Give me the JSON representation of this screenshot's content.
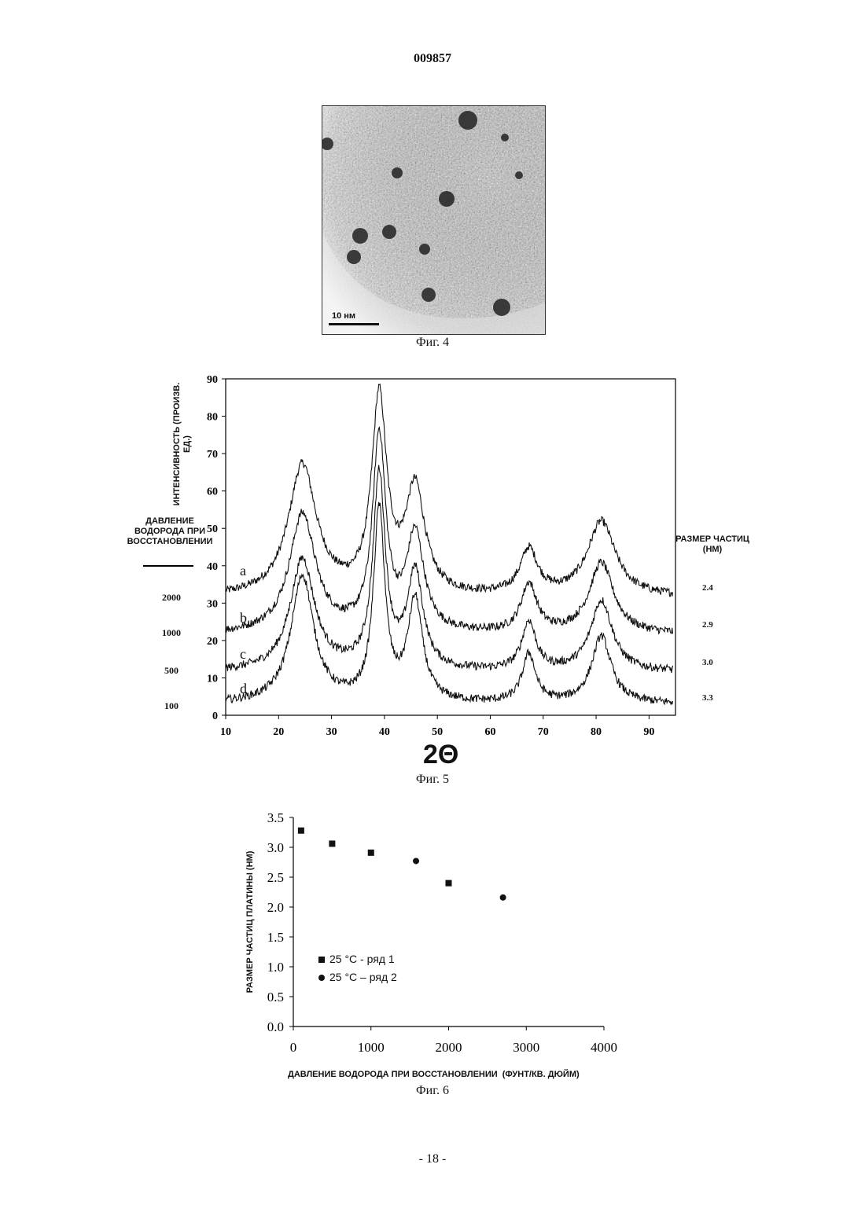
{
  "header": {
    "patent_number": "009857"
  },
  "figure4": {
    "caption": "Фиг. 4",
    "scale_label": "10 нм"
  },
  "figure5": {
    "caption": "Фиг. 5",
    "y_axis_label": "ИНТЕНСИВНОСТЬ (ПРОИЗВ. ЕД.)",
    "x_axis_label": "2Θ",
    "left_header": "ДАВЛЕНИЕ ВОДОРОДА ПРИ ВОССТАНОВЛЕНИИ",
    "right_header": "РАЗМЕР ЧАСТИЦ (НМ)",
    "curve_labels": [
      "a",
      "b",
      "c",
      "d"
    ],
    "pressures": [
      "2000",
      "1000",
      "500",
      "100"
    ],
    "sizes": [
      "2.4",
      "2.9",
      "3.0",
      "3.3"
    ]
  },
  "figure6": {
    "caption": "Фиг. 6",
    "x_axis_label": "ДАВЛЕНИЕ ВОДОРОДА ПРИ ВОССТАНОВЛЕНИИ  (ФУНТ/КВ. ДЮЙМ)",
    "y_axis_label": "РАЗМЕР ЧАСТИЦ ПЛАТИНЫ (НМ)",
    "legend": [
      "25 °C - ряд 1",
      "25 °C – ряд 2"
    ]
  },
  "footer": {
    "page_number": "- 18 -"
  },
  "chart_data": [
    {
      "type": "line",
      "title": "",
      "xlabel": "2Θ",
      "ylabel": "ИНТЕНСИВНОСТЬ (ПРОИЗВ. ЕД.)",
      "xlim": [
        10,
        95
      ],
      "ylim": [
        0,
        90
      ],
      "x_ticks": [
        "10",
        "20",
        "30",
        "40",
        "50",
        "60",
        "70",
        "80",
        "90"
      ],
      "y_ticks": [
        "0",
        "10",
        "20",
        "30",
        "40",
        "50",
        "60",
        "70",
        "80",
        "90"
      ],
      "series": [
        {
          "name": "a",
          "baseline": 31.5,
          "peaks": [
            [
              24.5,
              35,
              3.2
            ],
            [
              39.0,
              52,
              1.7
            ],
            [
              45.8,
              28,
              2.2
            ],
            [
              67.3,
              12,
              2.0
            ],
            [
              81.0,
              20,
              3.2
            ]
          ]
        },
        {
          "name": "b",
          "baseline": 21.5,
          "peaks": [
            [
              24.5,
              32,
              3.0
            ],
            [
              39.0,
              52,
              1.5
            ],
            [
              45.8,
              26,
              2.0
            ],
            [
              67.3,
              13,
              1.8
            ],
            [
              81.0,
              19,
              2.8
            ]
          ]
        },
        {
          "name": "c",
          "baseline": 11.5,
          "peaks": [
            [
              24.5,
              30,
              2.8
            ],
            [
              39.0,
              52,
              1.4
            ],
            [
              45.8,
              26,
              1.8
            ],
            [
              67.3,
              13,
              1.6
            ],
            [
              81.0,
              19,
              2.5
            ]
          ]
        },
        {
          "name": "d",
          "baseline": 3.0,
          "peaks": [
            [
              24.5,
              34,
              2.6
            ],
            [
              39.0,
              51,
              1.3
            ],
            [
              45.8,
              27,
              1.7
            ],
            [
              67.3,
              13,
              1.5
            ],
            [
              81.0,
              18,
              2.2
            ]
          ]
        }
      ]
    },
    {
      "type": "scatter",
      "title": "",
      "xlabel": "ДАВЛЕНИЕ ВОДОРОДА ПРИ ВОССТАНОВЛЕНИИ  (ФУНТ/КВ. ДЮЙМ)",
      "ylabel": "РАЗМЕР ЧАСТИЦ ПЛАТИНЫ (НМ)",
      "xlim": [
        0,
        4000
      ],
      "ylim": [
        0,
        3.5
      ],
      "x_ticks": [
        "0",
        "1000",
        "2000",
        "3000",
        "4000"
      ],
      "y_ticks": [
        "0.0",
        "0.5",
        "1.0",
        "1.5",
        "2.0",
        "2.5",
        "3.0",
        "3.5"
      ],
      "series": [
        {
          "name": "25 °C - ряд 1",
          "marker": "square",
          "x": [
            100,
            500,
            1000,
            2000
          ],
          "y": [
            3.28,
            3.06,
            2.91,
            2.4
          ]
        },
        {
          "name": "25 °C – ряд 2",
          "marker": "circle",
          "x": [
            1580,
            2700
          ],
          "y": [
            2.77,
            2.16
          ]
        }
      ]
    }
  ]
}
